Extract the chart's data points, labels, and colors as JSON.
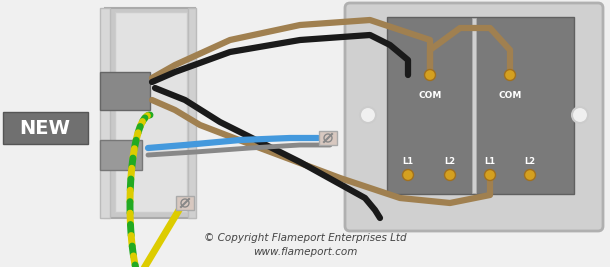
{
  "bg_color": "#f0f0f0",
  "copyright_text": "© Copyright Flameport Enterprises Ltd",
  "website_text": "www.flameport.com",
  "new_label": "NEW",
  "new_bg": "#707070",
  "new_text_color": "#ffffff",
  "wire_brown": "#a08050",
  "wire_black": "#1a1a1a",
  "wire_blue": "#4499dd",
  "wire_gray": "#888888",
  "wire_green": "#22aa22",
  "wire_yellow": "#ddcc00",
  "terminal_color": "#d4a020",
  "plate_outer": "#d0d0d0",
  "plate_inner_bg": "#686868",
  "wall_outer": "#c8c8c8",
  "wall_inner": "#e0e0e0",
  "cable_sheath": "#888888",
  "conn_bg": "#d8c8c0",
  "conn_edge": "#aaaaaa"
}
